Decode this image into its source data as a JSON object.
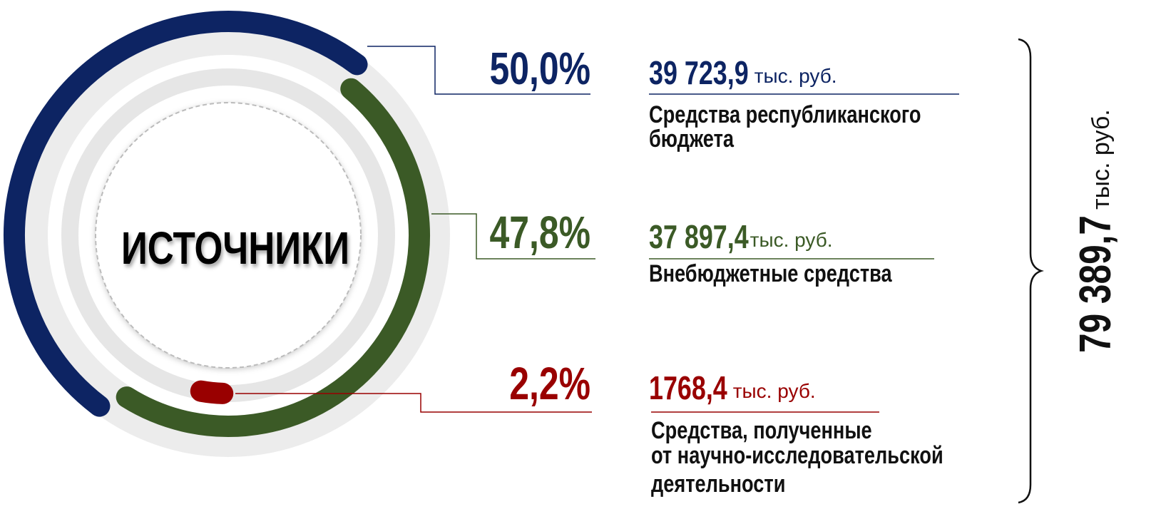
{
  "chart_data": {
    "type": "radial_bar",
    "center_label": "ИСТОЧНИКИ",
    "unit": "тыс. руб.",
    "categories": [
      [
        "Средства республиканского",
        "бюджета"
      ],
      [
        "Внебюджетные средства"
      ],
      [
        "Средства, полученные",
        "от научно-исследовательской",
        "деятельности"
      ]
    ],
    "values": [
      50.0,
      47.8,
      2.2
    ],
    "value_labels": [
      "50,0%",
      "47,8%",
      "2,2%"
    ],
    "amounts": [
      39723.9,
      37897.4,
      1768.4
    ],
    "amount_labels": [
      "39 723,9",
      "37 897,4",
      "1768,4"
    ],
    "colors": [
      "#0d2463",
      "#3b5a26",
      "#990000"
    ],
    "total": 79389.7,
    "total_label": "79 389,7"
  }
}
